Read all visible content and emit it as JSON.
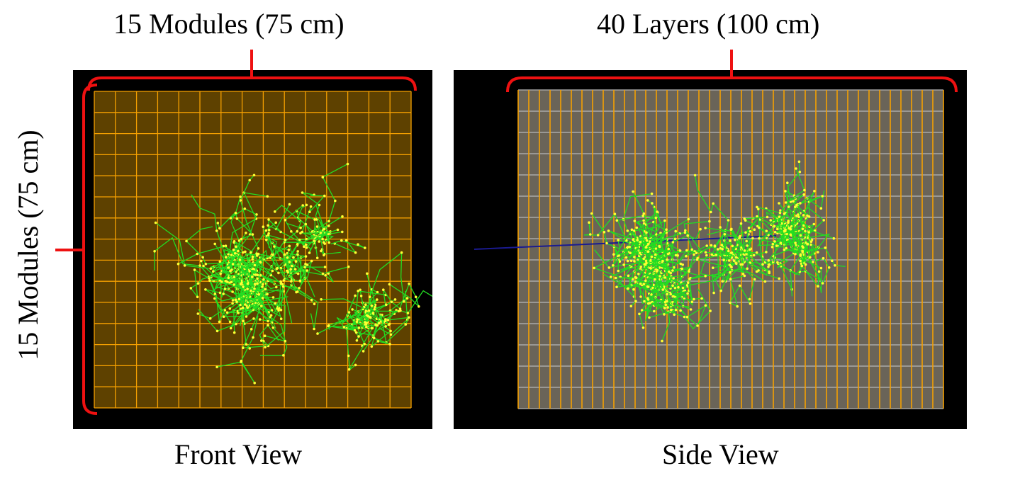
{
  "front_view": {
    "top_label": "15 Modules (75 cm)",
    "side_label": "15 Modules (75 cm)",
    "caption": "Front View",
    "grid_modules": 15
  },
  "side_view": {
    "top_label": "40 Layers (100 cm)",
    "caption": "Side View",
    "layers": 40,
    "rows": 15
  },
  "colors": {
    "background": "#000000",
    "front_fill": "#5e4100",
    "grid_line": "#f5a000",
    "side_fill": "#6a6458",
    "side_row_line": "#b8b8b8",
    "track_green": "#22dd22",
    "hit_yellow": "#ffff33",
    "beam_blue": "#1a1a90",
    "bracket_red": "#ee1111"
  }
}
